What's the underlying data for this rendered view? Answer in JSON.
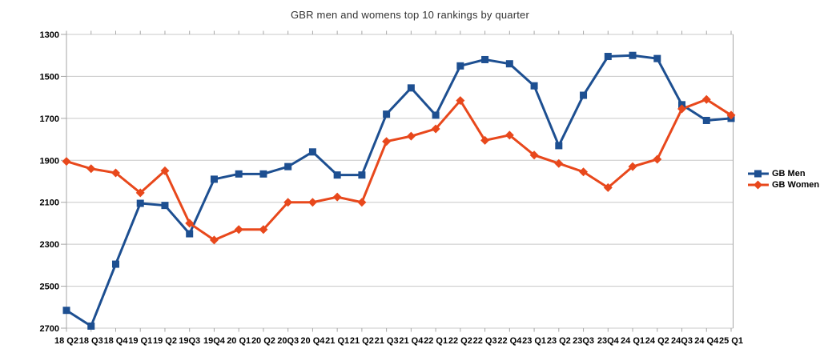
{
  "title": "GBR men and womens top 10 rankings by quarter",
  "legend": {
    "items": [
      {
        "label": "GB Men"
      },
      {
        "label": "GB Women"
      }
    ]
  },
  "chart_data": {
    "type": "line",
    "title": "GBR men and womens top 10 rankings by quarter",
    "categories": [
      "18 Q2",
      "18 Q3",
      "18 Q4",
      "19 Q1",
      "19 Q2",
      "19Q3",
      "19Q4",
      "20 Q1",
      "20 Q2",
      "20Q3",
      "20 Q4",
      "21 Q1",
      "21 Q2",
      "21 Q3",
      "21 Q4",
      "22 Q1",
      "22 Q2",
      "22 Q3",
      "22 Q4",
      "23 Q1",
      "23 Q2",
      "23Q3",
      "23Q4",
      "24 Q1",
      "24 Q2",
      "24Q3",
      "24 Q4",
      "25 Q1"
    ],
    "series": [
      {
        "name": "GB Men",
        "color": "#1d4f91",
        "marker": "square",
        "values": [
          2615,
          2690,
          2395,
          2105,
          2115,
          2250,
          1990,
          1965,
          1965,
          1930,
          1860,
          1970,
          1970,
          1680,
          1555,
          1685,
          1450,
          1420,
          1440,
          1545,
          1830,
          1590,
          1405,
          1400,
          1415,
          1635,
          1710,
          1700
        ]
      },
      {
        "name": "GB Women",
        "color": "#e8481c",
        "marker": "diamond",
        "values": [
          1905,
          1940,
          1960,
          2055,
          1950,
          2200,
          2280,
          2230,
          2230,
          2100,
          2100,
          2075,
          2100,
          1810,
          1785,
          1750,
          1615,
          1805,
          1780,
          1875,
          1915,
          1955,
          2030,
          1930,
          1895,
          1655,
          1610,
          1685
        ]
      }
    ],
    "y_axis": {
      "min": 1300,
      "max": 2700,
      "step": 200,
      "inverted": true,
      "tick_labels": [
        "1300",
        "1500",
        "1700",
        "1900",
        "2100",
        "2300",
        "2500",
        "2700"
      ]
    },
    "x_axis_label": "",
    "y_axis_label": "",
    "legend_position": "right",
    "grid": "horizontal",
    "colors": {
      "gridline": "#c8c8c8",
      "axis": "#a6a6a6",
      "title_text": "#333333",
      "label_text": "#000000"
    }
  }
}
